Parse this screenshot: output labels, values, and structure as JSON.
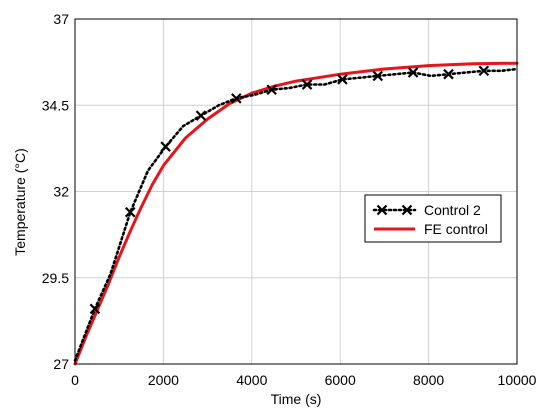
{
  "chart_data": {
    "type": "line",
    "xlabel": "Time (s)",
    "ylabel": "Temperature (°C)",
    "xlim": [
      0,
      10000
    ],
    "ylim": [
      27,
      37
    ],
    "xticks": [
      0,
      2000,
      4000,
      6000,
      8000,
      10000
    ],
    "yticks": [
      27,
      29.5,
      32,
      34.5,
      37
    ],
    "xtick_labels": [
      "0",
      "2000",
      "4000",
      "6000",
      "8000",
      "10000"
    ],
    "ytick_labels": [
      "27",
      "29.5",
      "32",
      "34.5",
      "37"
    ],
    "grid": true,
    "legend_position": "center-right",
    "series": [
      {
        "name": "Control 2",
        "style": "dotted-with-x-markers",
        "color": "#000000",
        "x": [
          0,
          300,
          450,
          800,
          1250,
          1650,
          2050,
          2450,
          2850,
          3250,
          3650,
          4050,
          4450,
          4850,
          5250,
          5650,
          6050,
          6450,
          6850,
          7250,
          7650,
          8050,
          8450,
          8850,
          9250,
          9650,
          10000
        ],
        "y": [
          27.1,
          28.1,
          28.6,
          29.6,
          31.4,
          32.6,
          33.3,
          33.9,
          34.2,
          34.5,
          34.7,
          34.8,
          34.95,
          35.0,
          35.1,
          35.1,
          35.25,
          35.3,
          35.35,
          35.4,
          35.45,
          35.35,
          35.4,
          35.45,
          35.5,
          35.5,
          35.55
        ],
        "marker_x": [
          450,
          1250,
          2050,
          2850,
          3650,
          4450,
          5250,
          6050,
          6850,
          7650,
          8450,
          9250
        ],
        "marker_y": [
          28.6,
          31.4,
          33.3,
          34.2,
          34.7,
          34.95,
          35.1,
          35.25,
          35.35,
          35.45,
          35.4,
          35.5
        ]
      },
      {
        "name": "FE control",
        "style": "solid",
        "color": "#e8141c",
        "x": [
          0,
          250,
          500,
          750,
          1000,
          1250,
          1500,
          1750,
          2000,
          2500,
          3000,
          3500,
          4000,
          4500,
          5000,
          5500,
          6000,
          7000,
          8000,
          9000,
          10000
        ],
        "y": [
          27.0,
          27.8,
          28.55,
          29.3,
          30.1,
          30.85,
          31.55,
          32.2,
          32.75,
          33.55,
          34.1,
          34.55,
          34.85,
          35.05,
          35.2,
          35.3,
          35.4,
          35.55,
          35.65,
          35.7,
          35.72
        ]
      }
    ]
  }
}
